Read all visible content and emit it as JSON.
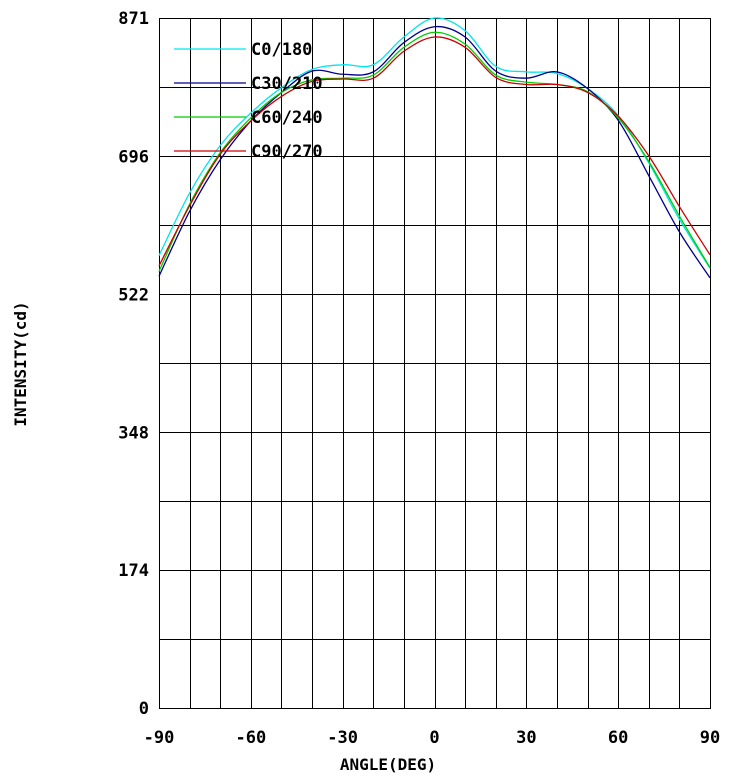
{
  "chart_data": {
    "type": "line",
    "xlabel": "ANGLE(DEG)",
    "ylabel": "INTENSITY(cd)",
    "xlim": [
      -90,
      90
    ],
    "ylim": [
      0,
      871
    ],
    "x_ticks": [
      -90,
      -60,
      -30,
      0,
      30,
      60,
      90
    ],
    "x_tick_labels": [
      "-90",
      "-60",
      "-30",
      "0",
      "30",
      "60",
      "90"
    ],
    "y_ticks": [
      0,
      174,
      348,
      522,
      696,
      871
    ],
    "y_tick_labels": [
      "0",
      "174",
      "348",
      "522",
      "696",
      "871"
    ],
    "x_grid_step": 10,
    "y_grid_step": 87.1,
    "grid": true,
    "legend_position": "top-left",
    "x": [
      -90,
      -80,
      -70,
      -60,
      -50,
      -40,
      -30,
      -20,
      -10,
      0,
      10,
      20,
      30,
      40,
      50,
      60,
      70,
      80,
      90
    ],
    "series": [
      {
        "name": "C0/180",
        "color": "#00e5ee",
        "values": [
          571,
          650,
          710,
          751,
          783,
          806,
          812,
          812,
          847,
          871,
          855,
          810,
          803,
          801,
          782,
          748,
          688,
          617,
          555
        ]
      },
      {
        "name": "C30/210",
        "color": "#00008b",
        "values": [
          545,
          627,
          692,
          741,
          777,
          804,
          800,
          803,
          840,
          860,
          847,
          804,
          795,
          803,
          782,
          742,
          672,
          601,
          543
        ]
      },
      {
        "name": "C60/240",
        "color": "#00cc00",
        "values": [
          551,
          636,
          701,
          745,
          777,
          793,
          795,
          799,
          834,
          853,
          838,
          799,
          790,
          787,
          778,
          745,
          690,
          621,
          556
        ]
      },
      {
        "name": "C90/270",
        "color": "#cc0000",
        "values": [
          558,
          634,
          699,
          741,
          772,
          791,
          794,
          795,
          829,
          847,
          834,
          796,
          787,
          787,
          777,
          747,
          697,
          633,
          572
        ]
      }
    ]
  }
}
